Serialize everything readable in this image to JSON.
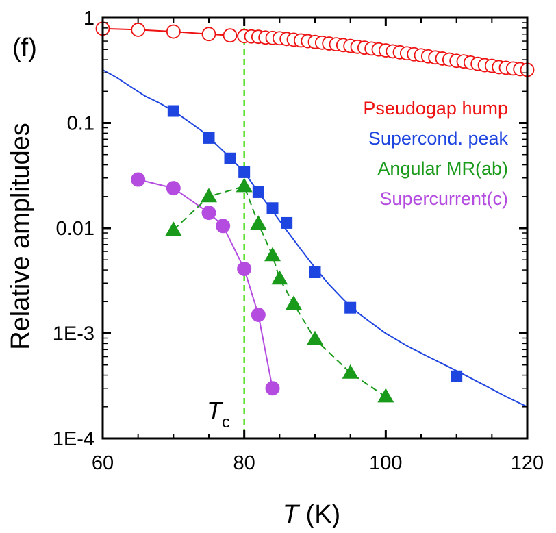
{
  "panel_label": "(f)",
  "tc_label": {
    "main": "T",
    "sub": "c"
  },
  "chart_data": {
    "type": "scatter",
    "title": "",
    "xlabel": {
      "italic": "T",
      "rest": " (K)"
    },
    "ylabel": "Relative amplitudes",
    "xlim": [
      60,
      120
    ],
    "ylim": [
      0.0001,
      1
    ],
    "yscale": "log",
    "x_ticks": [
      60,
      80,
      100,
      120
    ],
    "x_tick_labels": [
      "60",
      "80",
      "100",
      "120"
    ],
    "y_ticks": [
      0.0001,
      0.001,
      0.01,
      0.1,
      1
    ],
    "y_tick_labels": [
      "1E-4",
      "1E-3",
      "0.01",
      "0.1",
      "1"
    ],
    "vline": {
      "x": 80,
      "color": "#55dd22",
      "style": "dashed"
    },
    "legend_position": "right",
    "series": [
      {
        "name": "Pseudogap hump",
        "color": "#ee1111",
        "marker": "open-circle",
        "line": "straight",
        "x": [
          60,
          65,
          70,
          75,
          78,
          80,
          81,
          82,
          83,
          84,
          85,
          86,
          87,
          88,
          89,
          90,
          91,
          92,
          93,
          94,
          95,
          96,
          97,
          98,
          99,
          100,
          101,
          102,
          103,
          104,
          105,
          106,
          107,
          108,
          109,
          110,
          111,
          112,
          113,
          114,
          115,
          116,
          117,
          118,
          119,
          120
        ],
        "y": [
          0.79,
          0.77,
          0.74,
          0.7,
          0.68,
          0.67,
          0.665,
          0.66,
          0.65,
          0.645,
          0.64,
          0.63,
          0.62,
          0.61,
          0.6,
          0.59,
          0.58,
          0.57,
          0.56,
          0.55,
          0.54,
          0.53,
          0.52,
          0.51,
          0.5,
          0.49,
          0.48,
          0.47,
          0.46,
          0.45,
          0.44,
          0.43,
          0.42,
          0.41,
          0.4,
          0.39,
          0.385,
          0.375,
          0.365,
          0.355,
          0.35,
          0.34,
          0.335,
          0.33,
          0.325,
          0.32
        ]
      },
      {
        "name": "Supercond. peak",
        "color": "#1f45e0",
        "marker": "square",
        "line": "fit",
        "x": [
          70,
          75,
          78,
          80,
          82,
          84,
          86,
          90,
          95,
          110
        ],
        "y": [
          0.13,
          0.072,
          0.046,
          0.034,
          0.022,
          0.0155,
          0.0112,
          0.0038,
          0.00175,
          0.00039
        ],
        "fit_x": [
          60,
          62,
          64,
          66,
          68,
          70,
          72,
          74,
          76,
          78,
          80,
          82,
          84,
          86,
          88,
          90,
          92,
          94,
          96,
          98,
          100,
          103,
          106,
          110,
          114,
          117,
          120
        ],
        "fit_y": [
          0.32,
          0.27,
          0.22,
          0.18,
          0.155,
          0.13,
          0.105,
          0.084,
          0.063,
          0.047,
          0.034,
          0.022,
          0.0145,
          0.0095,
          0.0063,
          0.0042,
          0.0029,
          0.0021,
          0.00158,
          0.00125,
          0.001,
          0.00076,
          0.0006,
          0.00044,
          0.00032,
          0.00025,
          0.0002
        ]
      },
      {
        "name": "Angular MR(ab)",
        "color": "#1a9a1a",
        "marker": "triangle",
        "line": "dashed",
        "x": [
          70,
          75,
          80,
          82,
          84,
          85,
          87,
          90,
          95,
          100
        ],
        "y": [
          0.0096,
          0.02,
          0.025,
          0.011,
          0.0055,
          0.0033,
          0.0019,
          0.00088,
          0.00042,
          0.00025
        ]
      },
      {
        "name": "Supercurrent(c)",
        "color": "#b44ce0",
        "marker": "circle",
        "line": "straight",
        "x": [
          65,
          70,
          75,
          77,
          80,
          82,
          84
        ],
        "y": [
          0.029,
          0.024,
          0.014,
          0.0105,
          0.0041,
          0.0015,
          0.0003
        ]
      }
    ]
  }
}
